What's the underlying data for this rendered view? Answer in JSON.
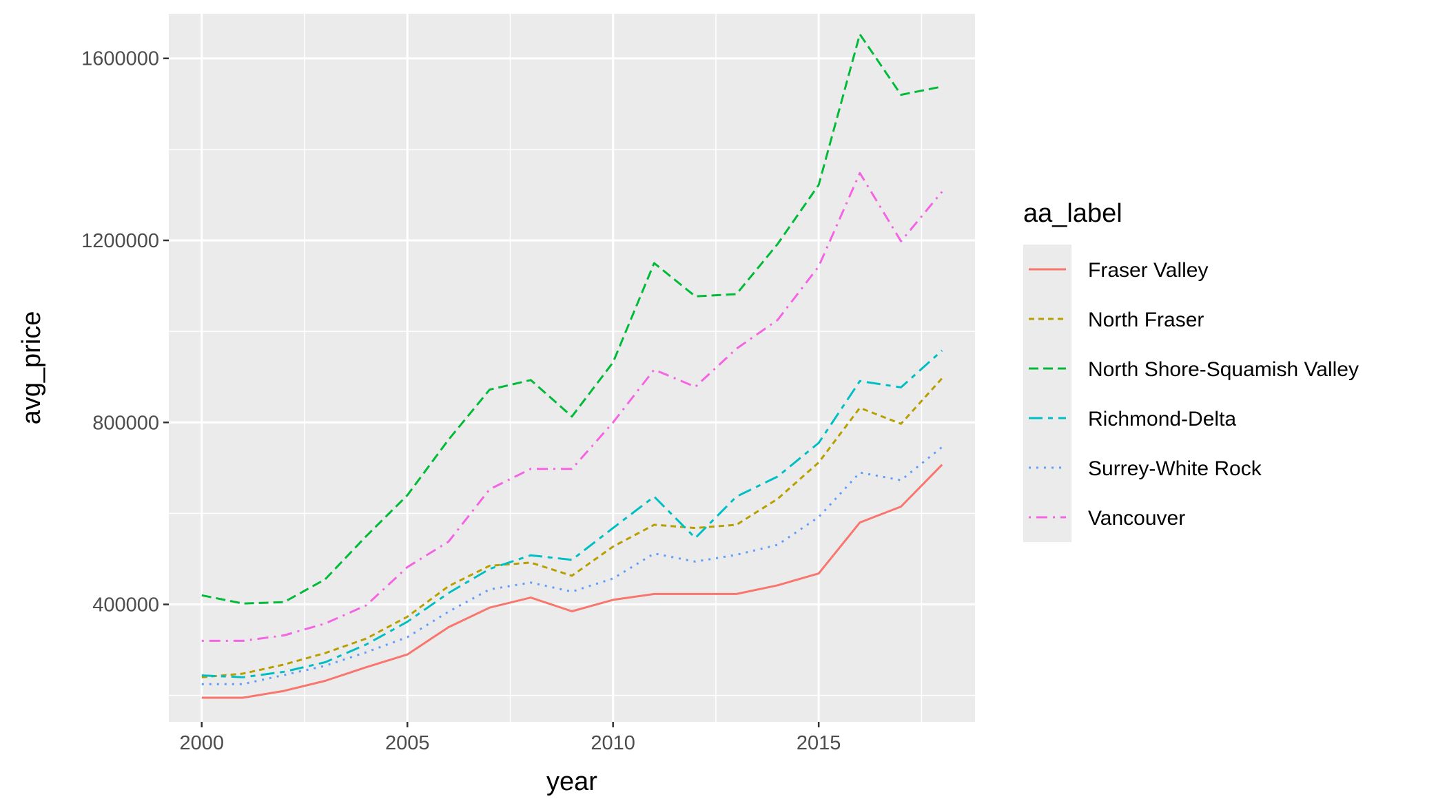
{
  "chart_data": {
    "type": "line",
    "xlabel": "year",
    "ylabel": "avg_price",
    "xlim": [
      1999.2,
      2018.8
    ],
    "ylim": [
      142000,
      1698000
    ],
    "xticks": [
      2000,
      2005,
      2010,
      2015
    ],
    "xtick_labels": [
      "2000",
      "2005",
      "2010",
      "2015"
    ],
    "yticks": [
      400000,
      800000,
      1200000,
      1600000
    ],
    "ytick_labels": [
      "400000",
      "800000",
      "1200000",
      "1600000"
    ],
    "grid": true,
    "legend": {
      "title": "aa_label",
      "position": "right"
    },
    "x": [
      2000,
      2001,
      2002,
      2003,
      2004,
      2005,
      2006,
      2007,
      2008,
      2009,
      2010,
      2011,
      2012,
      2013,
      2014,
      2015,
      2016,
      2017,
      2018
    ],
    "series": [
      {
        "name": "Fraser Valley",
        "color": "#F8766D",
        "dash": "solid",
        "values": [
          195000,
          195000,
          210000,
          232000,
          262000,
          290000,
          350000,
          393000,
          415000,
          385000,
          410000,
          423000,
          423000,
          423000,
          442000,
          468000,
          580000,
          615000,
          707000
        ]
      },
      {
        "name": "North Fraser",
        "color": "#B79F00",
        "dash": "dashed",
        "values": [
          240000,
          248000,
          268000,
          293000,
          325000,
          373000,
          440000,
          485000,
          492000,
          463000,
          527000,
          575000,
          568000,
          575000,
          632000,
          712000,
          832000,
          797000,
          897000
        ]
      },
      {
        "name": "North Shore-Squamish Valley",
        "color": "#00BA38",
        "dash": "longdash",
        "values": [
          420000,
          402000,
          405000,
          455000,
          550000,
          640000,
          762000,
          872000,
          893000,
          813000,
          932000,
          1150000,
          1077000,
          1082000,
          1192000,
          1322000,
          1653000,
          1520000,
          1538000
        ]
      },
      {
        "name": "Richmond-Delta",
        "color": "#00BFC4",
        "dash": "twodash",
        "values": [
          244000,
          240000,
          252000,
          273000,
          312000,
          362000,
          425000,
          478000,
          508000,
          498000,
          568000,
          637000,
          546000,
          637000,
          681000,
          755000,
          891000,
          877000,
          958000
        ]
      },
      {
        "name": "Surrey-White Rock",
        "color": "#619CFF",
        "dash": "dotted",
        "values": [
          225000,
          225000,
          245000,
          265000,
          295000,
          328000,
          384000,
          433000,
          448000,
          428000,
          457000,
          512000,
          494000,
          509000,
          531000,
          592000,
          690000,
          673000,
          746000
        ]
      },
      {
        "name": "Vancouver",
        "color": "#F564E3",
        "dash": "dotdash",
        "values": [
          320000,
          320000,
          332000,
          358000,
          398000,
          482000,
          538000,
          653000,
          698000,
          698000,
          800000,
          916000,
          878000,
          962000,
          1025000,
          1143000,
          1348000,
          1198000,
          1307000
        ]
      }
    ]
  }
}
